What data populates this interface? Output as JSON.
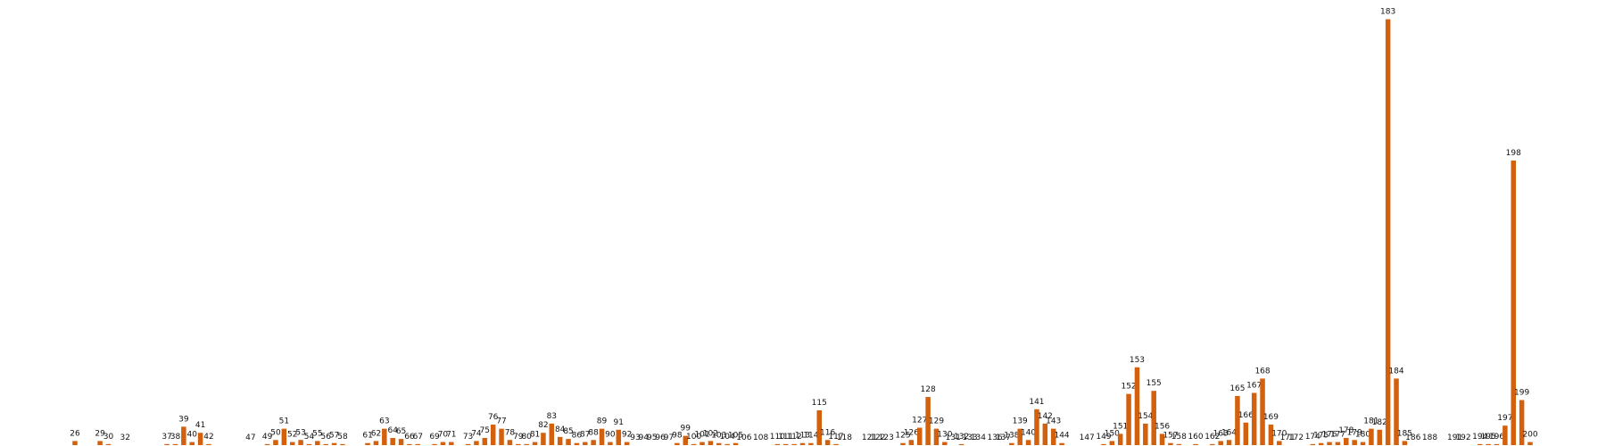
{
  "chart_data": {
    "type": "bar",
    "color": "#d2600d",
    "x": [
      26,
      29,
      30,
      32,
      37,
      38,
      39,
      40,
      41,
      42,
      47,
      49,
      50,
      51,
      52,
      53,
      54,
      55,
      56,
      57,
      58,
      61,
      62,
      63,
      64,
      65,
      66,
      67,
      69,
      70,
      71,
      73,
      74,
      75,
      76,
      77,
      78,
      79,
      80,
      81,
      82,
      83,
      84,
      85,
      86,
      87,
      88,
      89,
      90,
      91,
      92,
      93,
      94,
      95,
      96,
      97,
      98,
      99,
      100,
      101,
      102,
      103,
      104,
      105,
      106,
      108,
      110,
      111,
      112,
      113,
      114,
      115,
      116,
      117,
      118,
      121,
      122,
      123,
      125,
      126,
      127,
      128,
      129,
      130,
      131,
      132,
      133,
      134,
      136,
      137,
      138,
      139,
      140,
      141,
      142,
      143,
      144,
      147,
      149,
      150,
      151,
      152,
      153,
      154,
      155,
      156,
      157,
      158,
      160,
      162,
      163,
      164,
      165,
      166,
      167,
      168,
      169,
      170,
      171,
      172,
      174,
      175,
      176,
      177,
      178,
      179,
      180,
      181,
      182,
      183,
      184,
      185,
      186,
      188,
      191,
      192,
      194,
      195,
      196,
      197,
      198,
      199,
      200
    ],
    "values": [
      4,
      4,
      1,
      0,
      1,
      1,
      18,
      3,
      12,
      1,
      0,
      1,
      5,
      16,
      3,
      5,
      1,
      4,
      1,
      2,
      1,
      2,
      4,
      16,
      7,
      6,
      1,
      1,
      1,
      3,
      3,
      1,
      4,
      7,
      20,
      16,
      5,
      1,
      1,
      3,
      12,
      21,
      8,
      6,
      2,
      3,
      5,
      16,
      3,
      15,
      3,
      0,
      0,
      0,
      0,
      0,
      2,
      9,
      1,
      3,
      4,
      2,
      1,
      2,
      0,
      0,
      1,
      1,
      1,
      2,
      2,
      34,
      5,
      1,
      0,
      0,
      0,
      0,
      2,
      5,
      17,
      47,
      16,
      3,
      0,
      1,
      0,
      0,
      0,
      0,
      2,
      16,
      5,
      35,
      21,
      16,
      2,
      0,
      1,
      4,
      11,
      50,
      76,
      21,
      53,
      11,
      2,
      1,
      1,
      1,
      4,
      5,
      48,
      22,
      51,
      65,
      20,
      4,
      0,
      0,
      1,
      2,
      3,
      3,
      7,
      5,
      3,
      16,
      15,
      416,
      65,
      4,
      0,
      0,
      0,
      0,
      1,
      1,
      1,
      19,
      278,
      44,
      3
    ],
    "xlim": [
      26,
      200
    ],
    "ylim": [
      0,
      420
    ]
  }
}
